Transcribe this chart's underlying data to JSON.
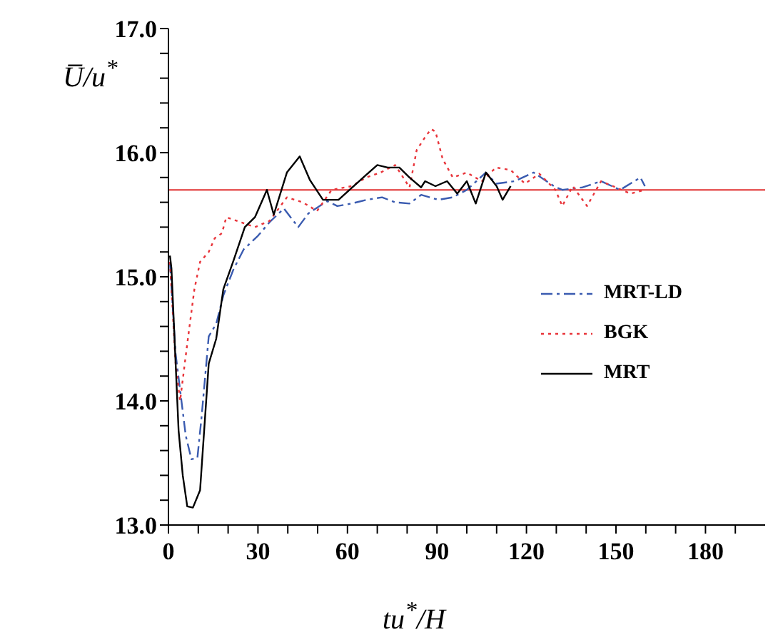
{
  "chart_data": {
    "type": "line",
    "xlabel": "tu$^{*}$/H",
    "ylabel": "U̅/u$^{*}$",
    "xlim": [
      0,
      200
    ],
    "xticks": [
      0,
      {
        "value": 10,
        "label": null
      },
      {
        "value": 20,
        "label": null
      },
      30,
      {
        "value": 40,
        "label": null
      },
      {
        "value": 50,
        "label": null
      },
      60,
      {
        "value": 70,
        "label": null
      },
      {
        "value": 80,
        "label": null
      },
      90,
      {
        "value": 100,
        "label": null
      },
      {
        "value": 110,
        "label": null
      },
      120,
      {
        "value": 130,
        "label": null
      },
      {
        "value": 140,
        "label": null
      },
      150,
      {
        "value": 160,
        "label": null
      },
      {
        "value": 170,
        "label": null
      },
      180,
      {
        "value": 190,
        "label": null
      }
    ],
    "ylim": [
      13,
      17
    ],
    "yticks": [
      {
        "value": 13,
        "label": "13.0"
      },
      {
        "value": 13.2,
        "label": null
      },
      {
        "value": 13.4,
        "label": null
      },
      {
        "value": 13.6,
        "label": null
      },
      {
        "value": 13.8,
        "label": null
      },
      {
        "value": 14,
        "label": "14.0"
      },
      {
        "value": 14.2,
        "label": null
      },
      {
        "value": 14.4,
        "label": null
      },
      {
        "value": 14.6,
        "label": null
      },
      {
        "value": 14.8,
        "label": null
      },
      {
        "value": 15,
        "label": "15.0"
      },
      {
        "value": 15.2,
        "label": null
      },
      {
        "value": 15.4,
        "label": null
      },
      {
        "value": 15.6,
        "label": null
      },
      {
        "value": 15.8,
        "label": null
      },
      {
        "value": 16,
        "label": "16.0"
      },
      {
        "value": 16.2,
        "label": null
      },
      {
        "value": 16.4,
        "label": null
      },
      {
        "value": 16.6,
        "label": null
      },
      {
        "value": 16.8,
        "label": null
      },
      {
        "value": 17,
        "label": "17.0"
      }
    ],
    "legend": "right",
    "ref_lines": [
      {
        "axis": "y",
        "value": 15.7,
        "color": "#e03030"
      }
    ],
    "series": [
      {
        "name": "MRT-LD",
        "color": "#3a5bb0",
        "line_style": "dashed",
        "x": [
          0.5,
          2.4,
          5.8,
          7.7,
          9.7,
          11.1,
          13.5,
          16,
          18.4,
          21.8,
          25.2,
          30,
          33.9,
          38.7,
          43.5,
          46.9,
          53.2,
          56.6,
          61.4,
          66.3,
          71.6,
          76,
          80.8,
          84.7,
          90.5,
          95.3,
          100,
          106.4,
          109.8,
          116,
          122.4,
          129.2,
          132,
          138.8,
          145,
          151.4,
          158.2,
          159.7
        ],
        "values": [
          15.12,
          14.38,
          13.72,
          13.53,
          13.54,
          13.87,
          14.52,
          14.62,
          14.85,
          15.06,
          15.22,
          15.33,
          15.44,
          15.55,
          15.4,
          15.51,
          15.61,
          15.57,
          15.59,
          15.62,
          15.64,
          15.6,
          15.59,
          15.66,
          15.62,
          15.64,
          15.7,
          15.84,
          15.75,
          15.77,
          15.84,
          15.73,
          15.7,
          15.72,
          15.77,
          15.7,
          15.8,
          15.73
        ]
      },
      {
        "name": "BGK",
        "color": "#e8343a",
        "line_style": "dotted",
        "x": [
          0.5,
          2.4,
          3.9,
          6.3,
          8.7,
          10.6,
          13.5,
          15.5,
          17.9,
          19.4,
          29,
          33.9,
          39.7,
          45,
          49.8,
          54.7,
          61.4,
          66.3,
          71.1,
          76,
          80.8,
          83.2,
          85.6,
          88,
          89.5,
          91.9,
          95.3,
          100,
          105,
          109.8,
          114.7,
          119.5,
          124.3,
          129.7,
          132,
          135.5,
          140.3,
          145,
          150,
          154.8,
          159.7
        ],
        "values": [
          15.12,
          14.3,
          14.0,
          14.46,
          14.9,
          15.12,
          15.2,
          15.31,
          15.35,
          15.48,
          15.4,
          15.45,
          15.64,
          15.6,
          15.53,
          15.7,
          15.73,
          15.8,
          15.84,
          15.9,
          15.72,
          16.02,
          16.11,
          16.19,
          16.17,
          15.95,
          15.8,
          15.84,
          15.77,
          15.88,
          15.86,
          15.75,
          15.83,
          15.7,
          15.57,
          15.73,
          15.57,
          15.77,
          15.72,
          15.67,
          15.7
        ]
      },
      {
        "name": "MRT",
        "color": "#000000",
        "line_style": "solid",
        "x": [
          0.5,
          1,
          3.4,
          4.8,
          6.3,
          8.2,
          10.6,
          13.5,
          16,
          18.4,
          21.8,
          25.6,
          29,
          33,
          35.3,
          39.7,
          44,
          47.4,
          51.8,
          57,
          63.9,
          70,
          73.5,
          77.4,
          80.8,
          84.7,
          86,
          89.5,
          93.4,
          96.8,
          100,
          103,
          106.4,
          110,
          112,
          114.7
        ],
        "values": [
          15.17,
          15.07,
          13.76,
          13.4,
          13.15,
          13.14,
          13.28,
          14.3,
          14.5,
          14.9,
          15.13,
          15.4,
          15.48,
          15.7,
          15.5,
          15.84,
          15.97,
          15.78,
          15.62,
          15.62,
          15.77,
          15.9,
          15.88,
          15.88,
          15.8,
          15.72,
          15.77,
          15.73,
          15.77,
          15.67,
          15.77,
          15.59,
          15.84,
          15.73,
          15.62,
          15.73
        ]
      }
    ]
  }
}
